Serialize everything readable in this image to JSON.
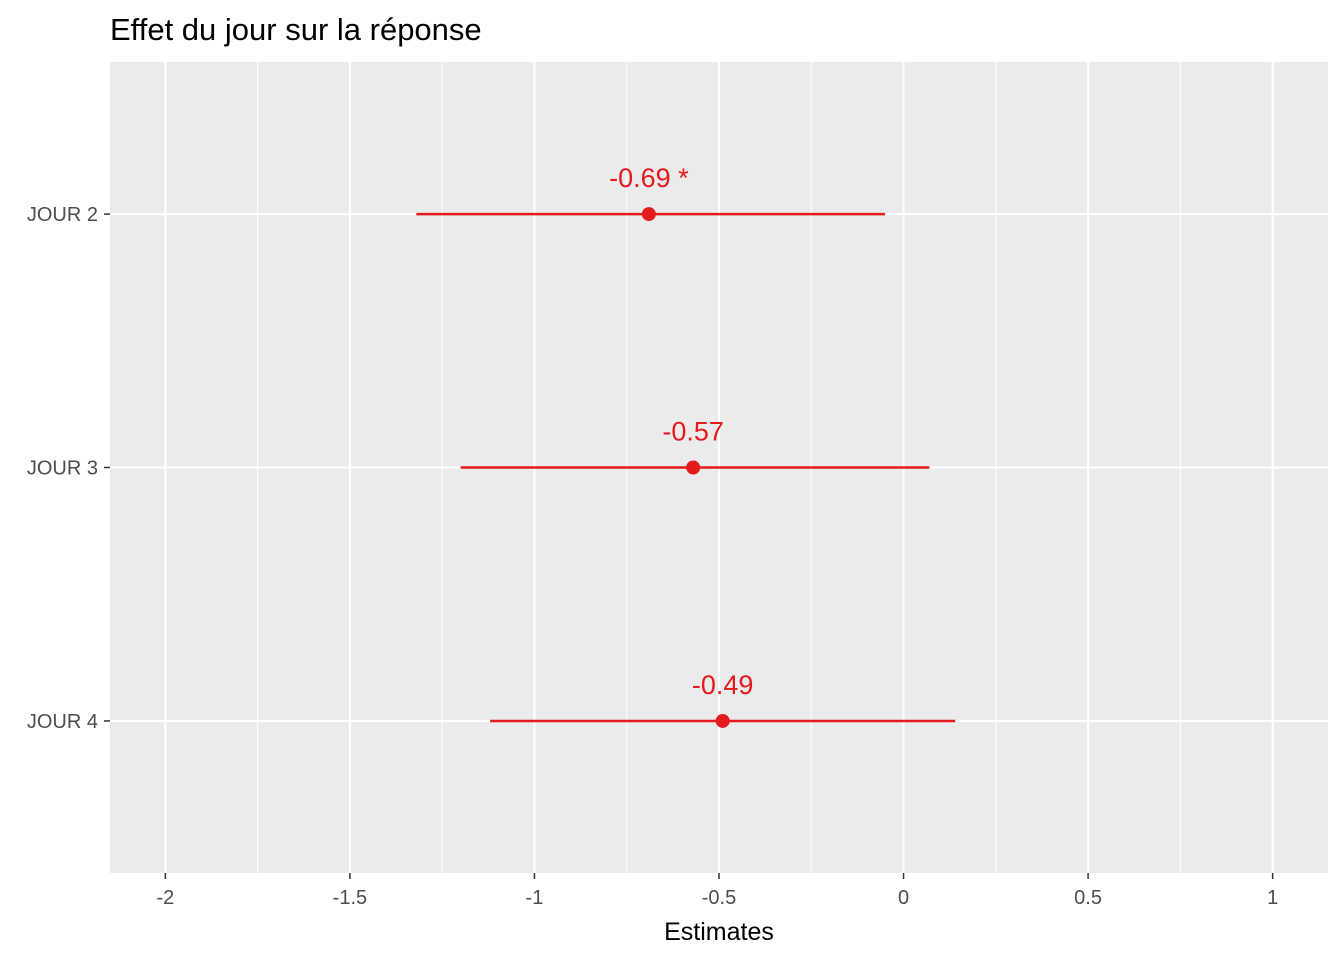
{
  "chart_data": {
    "type": "scatter",
    "title": "Effet du jour sur la réponse",
    "xlabel": "Estimates",
    "ylabel": "",
    "xlim": [
      -2.15,
      1.15
    ],
    "x_ticks": [
      -2,
      -1.5,
      -1,
      -0.5,
      0,
      0.5,
      1
    ],
    "x_tick_labels": [
      "-2",
      "-1.5",
      "-1",
      "-0.5",
      "0",
      "0.5",
      "1"
    ],
    "grid": true,
    "legend": "none",
    "colors": {
      "point": "#e41a1c",
      "panel": "#ebebeb",
      "grid": "#ffffff"
    },
    "categories": [
      "JOUR 2",
      "JOUR 3",
      "JOUR 4"
    ],
    "series": [
      {
        "points": [
          {
            "category": "JOUR 2",
            "estimate": -0.69,
            "ci_low": -1.32,
            "ci_high": -0.05,
            "label": "-0.69 *"
          },
          {
            "category": "JOUR 3",
            "estimate": -0.57,
            "ci_low": -1.2,
            "ci_high": 0.07,
            "label": "-0.57"
          },
          {
            "category": "JOUR 4",
            "estimate": -0.49,
            "ci_low": -1.12,
            "ci_high": 0.14,
            "label": "-0.49"
          }
        ]
      }
    ]
  }
}
